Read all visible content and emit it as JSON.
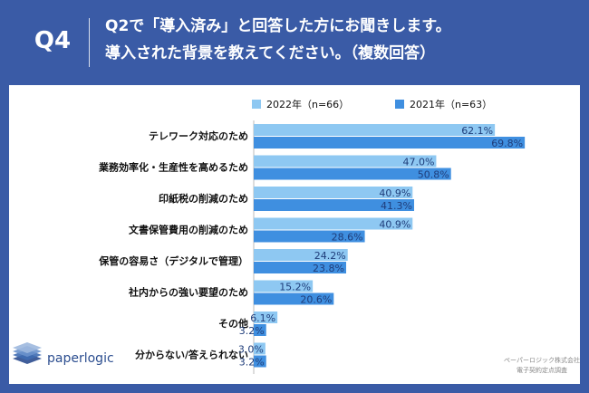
{
  "question": {
    "label": "Q4",
    "line1": "Q2で「導入済み」と回答した方にお聞きします。",
    "line2": "導入された背景を教えてください。（複数回答）"
  },
  "brand": {
    "logo_text": "paperlogic"
  },
  "footer": {
    "line1": "ペーパーロジック株式会社",
    "line2": "電子契約定点調査"
  },
  "colors": {
    "header_bg": "#3a5ba6",
    "series_2022": "#8ec8f2",
    "series_2021": "#3f8fe0",
    "value_text": "#1f3d7a"
  },
  "chart_data": {
    "type": "bar",
    "orientation": "horizontal",
    "categories": [
      "テレワーク対応のため",
      "業務効率化・生産性を高めるため",
      "印紙税の削減のため",
      "文書保管費用の削減のため",
      "保管の容易さ（デジタルで管理）",
      "社内からの強い要望のため",
      "その他",
      "分からない/答えられない"
    ],
    "series": [
      {
        "name": "2022年（n=66）",
        "values": [
          62.1,
          47.0,
          40.9,
          40.9,
          24.2,
          15.2,
          6.1,
          3.0
        ],
        "labels": [
          "62.1%",
          "47.0%",
          "40.9%",
          "40.9%",
          "24.2%",
          "15.2%",
          "6.1%",
          "3.0%"
        ]
      },
      {
        "name": "2021年（n=63）",
        "values": [
          69.8,
          50.8,
          41.3,
          28.6,
          23.8,
          20.6,
          3.2,
          3.2
        ],
        "labels": [
          "69.8%",
          "50.8%",
          "41.3%",
          "28.6%",
          "23.8%",
          "20.6%",
          "3.2%",
          "3.2%"
        ]
      }
    ],
    "xlim": [
      0,
      70
    ],
    "unit": "%",
    "legend_position": "top"
  }
}
